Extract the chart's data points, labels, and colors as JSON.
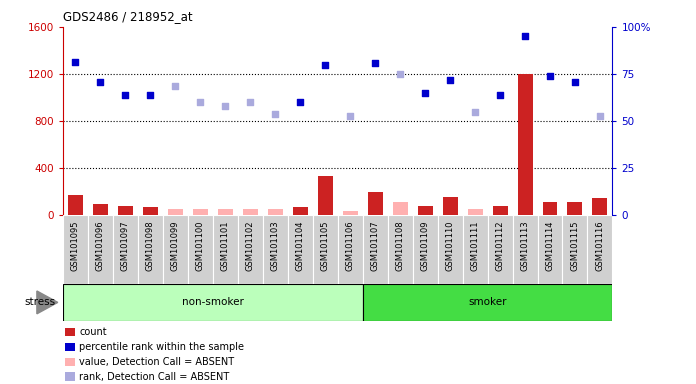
{
  "title": "GDS2486 / 218952_at",
  "samples": [
    "GSM101095",
    "GSM101096",
    "GSM101097",
    "GSM101098",
    "GSM101099",
    "GSM101100",
    "GSM101101",
    "GSM101102",
    "GSM101103",
    "GSM101104",
    "GSM101105",
    "GSM101106",
    "GSM101107",
    "GSM101108",
    "GSM101109",
    "GSM101110",
    "GSM101111",
    "GSM101112",
    "GSM101113",
    "GSM101114",
    "GSM101115",
    "GSM101116"
  ],
  "groups": {
    "non-smoker": [
      0,
      11
    ],
    "smoker": [
      12,
      21
    ]
  },
  "count_values": [
    170,
    90,
    75,
    70,
    null,
    null,
    null,
    null,
    null,
    70,
    330,
    null,
    195,
    null,
    80,
    155,
    null,
    75,
    1200,
    115,
    110,
    145
  ],
  "count_absent": [
    null,
    null,
    null,
    null,
    55,
    50,
    55,
    55,
    50,
    null,
    null,
    35,
    null,
    110,
    null,
    null,
    55,
    null,
    null,
    null,
    null,
    null
  ],
  "rank_present": [
    1300,
    1130,
    1020,
    1020,
    null,
    null,
    null,
    null,
    null,
    960,
    1280,
    null,
    1290,
    null,
    1040,
    1150,
    null,
    1020,
    1520,
    1180,
    1130,
    null
  ],
  "rank_absent": [
    null,
    null,
    null,
    null,
    1100,
    960,
    930,
    960,
    860,
    null,
    null,
    840,
    null,
    1200,
    null,
    null,
    880,
    null,
    null,
    null,
    null,
    840
  ],
  "left_axis_color": "#CC0000",
  "right_axis_color": "#0000CC",
  "bar_color_present": "#CC2222",
  "bar_color_absent": "#FFB0B0",
  "dot_color_present": "#0000CC",
  "dot_color_absent": "#AAAADD",
  "plot_bg_color": "#FFFFFF",
  "label_bg_color": "#D0D0D0",
  "group_bg_nonsmoker": "#BBFFBB",
  "group_bg_smoker": "#44DD44",
  "ylim_left": [
    0,
    1600
  ],
  "ylim_right": [
    0,
    100
  ],
  "yticks_left": [
    0,
    400,
    800,
    1200,
    1600
  ],
  "yticks_right": [
    0,
    25,
    50,
    75,
    100
  ],
  "ytick_right_labels": [
    "0",
    "25",
    "50",
    "75",
    "100%"
  ]
}
